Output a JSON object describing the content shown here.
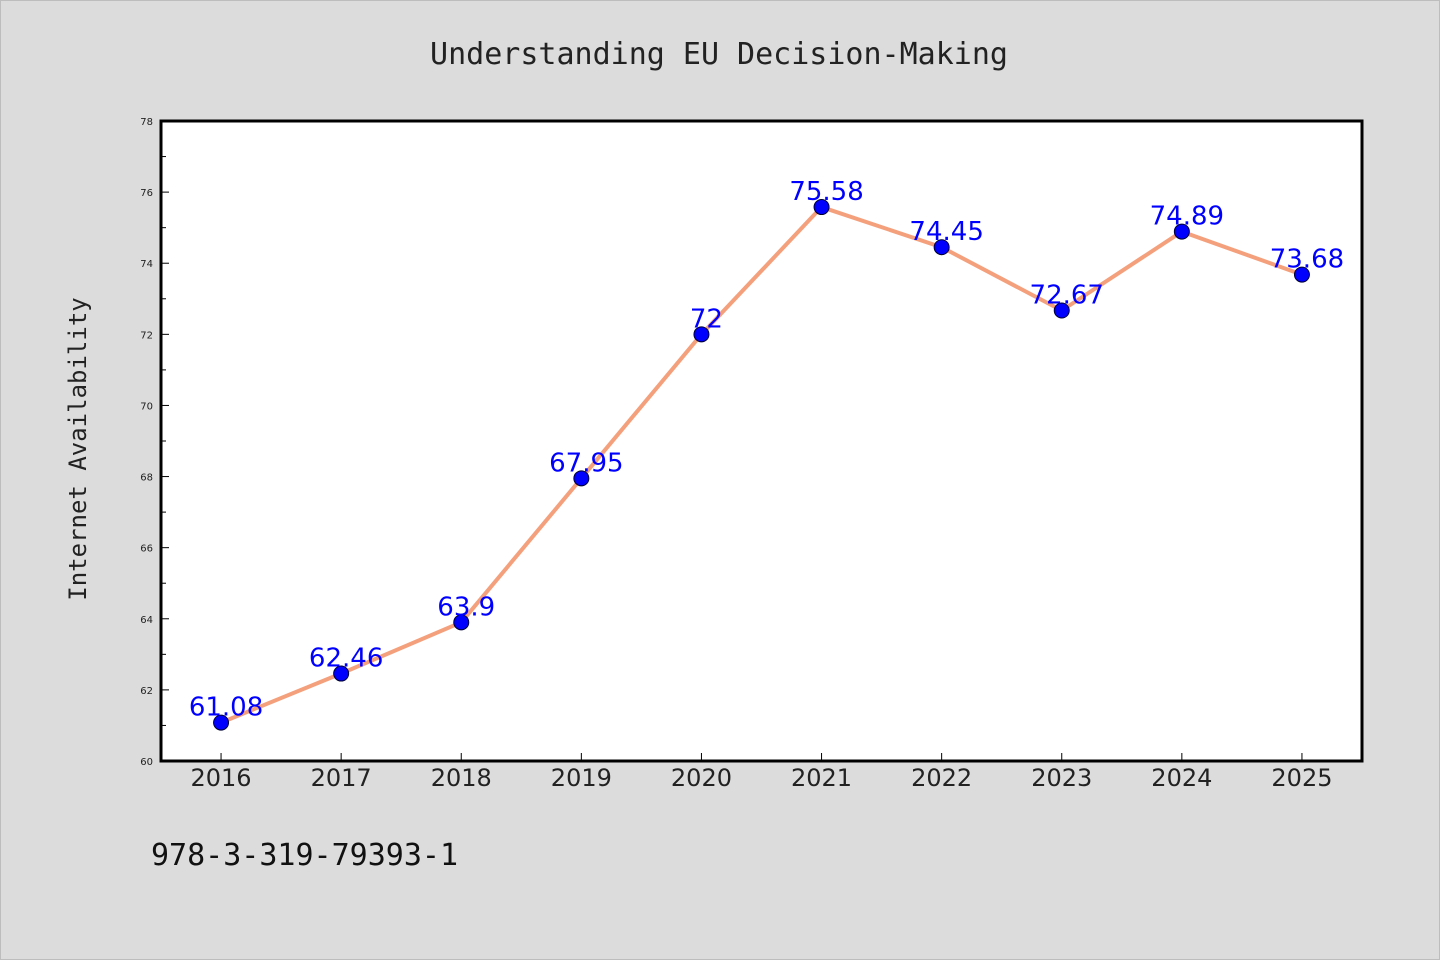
{
  "chart_data": {
    "type": "line",
    "title": "Understanding EU Decision-Making",
    "xlabel": "",
    "ylabel": "Internet Availability",
    "categories": [
      "2016",
      "2017",
      "2018",
      "2019",
      "2020",
      "2021",
      "2022",
      "2023",
      "2024",
      "2025"
    ],
    "series": [
      {
        "values": [
          61.08,
          62.46,
          63.9,
          67.95,
          72,
          75.58,
          74.45,
          72.67,
          74.89,
          73.68
        ],
        "data_labels": [
          "61.08",
          "62.46",
          "63.9",
          "67.95",
          "72",
          "75.58",
          "74.45",
          "72.67",
          "74.89",
          "73.68"
        ]
      }
    ],
    "ylim": [
      60,
      78
    ],
    "yticks": [
      60,
      62,
      64,
      66,
      68,
      70,
      72,
      74,
      76,
      78
    ],
    "grid": false,
    "legend": "none",
    "colors": {
      "line": "#f4a07c",
      "marker": "#0000ff",
      "data_label": "#0000ff",
      "background": "#dcdcdc",
      "plot_area": "#ffffff"
    }
  },
  "footer": {
    "isbn": "978-3-319-79393-1"
  }
}
